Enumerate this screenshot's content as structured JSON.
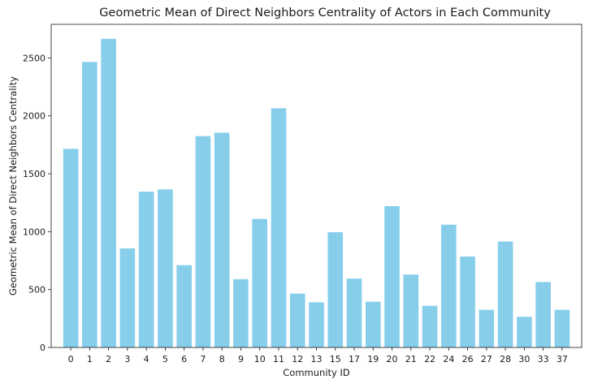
{
  "chart_data": {
    "type": "bar",
    "title": "Geometric Mean of Direct Neighbors Centrality of Actors in Each Community",
    "xlabel": "Community ID",
    "ylabel": "Geometric Mean of Direct Neighbors Centrality",
    "categories": [
      "0",
      "1",
      "2",
      "3",
      "4",
      "5",
      "6",
      "7",
      "8",
      "9",
      "10",
      "11",
      "12",
      "13",
      "15",
      "17",
      "19",
      "20",
      "21",
      "22",
      "24",
      "26",
      "27",
      "28",
      "30",
      "33",
      "37"
    ],
    "values": [
      1715,
      2465,
      2665,
      855,
      1345,
      1365,
      710,
      1825,
      1855,
      590,
      1110,
      2065,
      465,
      390,
      995,
      595,
      395,
      1220,
      630,
      360,
      1060,
      785,
      325,
      915,
      265,
      565,
      325
    ],
    "yticks": [
      0,
      500,
      1000,
      1500,
      2000,
      2500
    ],
    "ylim": [
      0,
      2790
    ],
    "bar_color": "#87ceeb",
    "grid": false,
    "legend": "none"
  }
}
